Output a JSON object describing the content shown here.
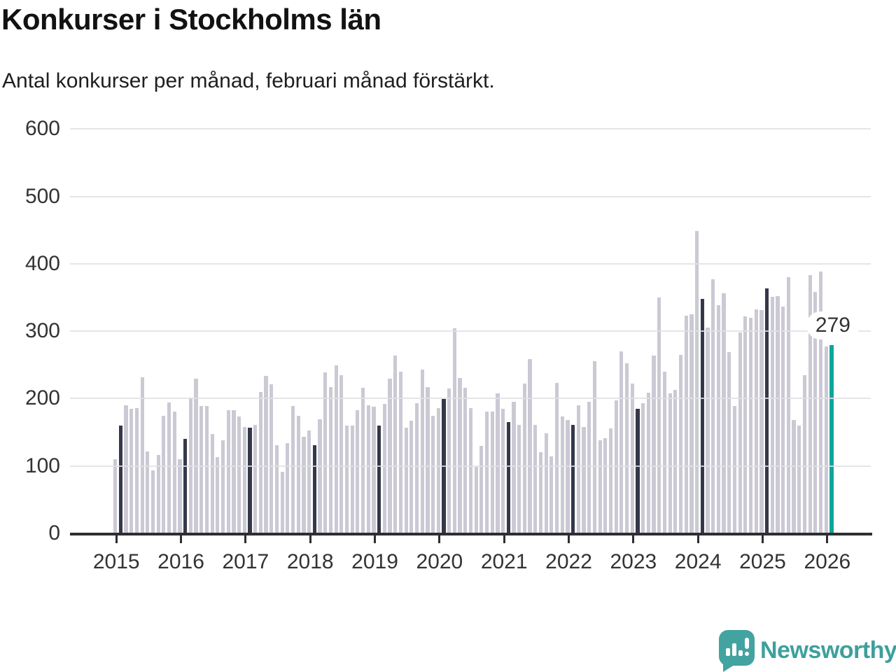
{
  "header": {
    "title": "Konkurser i Stockholms län",
    "subtitle": "Antal konkurser per månad, februari månad förstärkt."
  },
  "annotation": {
    "latest_label": "279"
  },
  "logo": {
    "text": "Newsworthy"
  },
  "colors": {
    "bar_default": "#cbc9d4",
    "bar_february": "#353849",
    "bar_latest": "#0ba69c",
    "axis": "#2e2e33",
    "grid": "#e0e0e4",
    "text": "#333333",
    "logo_teal": "#43a3a0"
  },
  "chart_data": {
    "type": "bar",
    "title": "Konkurser i Stockholms län",
    "subtitle": "Antal konkurser per månad, februari månad förstärkt.",
    "frequency": "monthly",
    "start": "2015-01",
    "end": "2026-02",
    "ylabel": "",
    "xlabel": "",
    "ylim": [
      0,
      600
    ],
    "yticks": [
      0,
      100,
      200,
      300,
      400,
      500,
      600
    ],
    "year_labels": [
      "2015",
      "2016",
      "2017",
      "2018",
      "2019",
      "2020",
      "2021",
      "2022",
      "2023",
      "2024",
      "2025",
      "2026"
    ],
    "grid": true,
    "legend": false,
    "highlight_rule": "february bars dark, latest bar teal with value label",
    "latest": {
      "period": "2026-02",
      "value": 279
    },
    "series": [
      {
        "name": "Antal konkurser per månad",
        "values": [
          110,
          160,
          190,
          185,
          186,
          232,
          122,
          93,
          116,
          175,
          194,
          181,
          110,
          140,
          202,
          230,
          189,
          189,
          147,
          113,
          138,
          183,
          183,
          173,
          158,
          157,
          161,
          210,
          234,
          221,
          131,
          91,
          134,
          189,
          175,
          143,
          153,
          131,
          169,
          239,
          217,
          249,
          235,
          160,
          160,
          183,
          216,
          190,
          188,
          160,
          192,
          230,
          264,
          240,
          157,
          167,
          193,
          243,
          217,
          174,
          186,
          199,
          215,
          304,
          231,
          216,
          186,
          99,
          130,
          181,
          181,
          208,
          185,
          165,
          195,
          161,
          222,
          259,
          161,
          120,
          149,
          114,
          223,
          173,
          168,
          161,
          190,
          158,
          195,
          255,
          138,
          141,
          156,
          197,
          270,
          252,
          222,
          185,
          193,
          209,
          264,
          350,
          240,
          208,
          213,
          265,
          323,
          325,
          449,
          348,
          305,
          377,
          339,
          356,
          269,
          189,
          298,
          322,
          320,
          332,
          331,
          364,
          351,
          352,
          337,
          380,
          168,
          160,
          235,
          383,
          358,
          388,
          277,
          279
        ]
      }
    ]
  }
}
